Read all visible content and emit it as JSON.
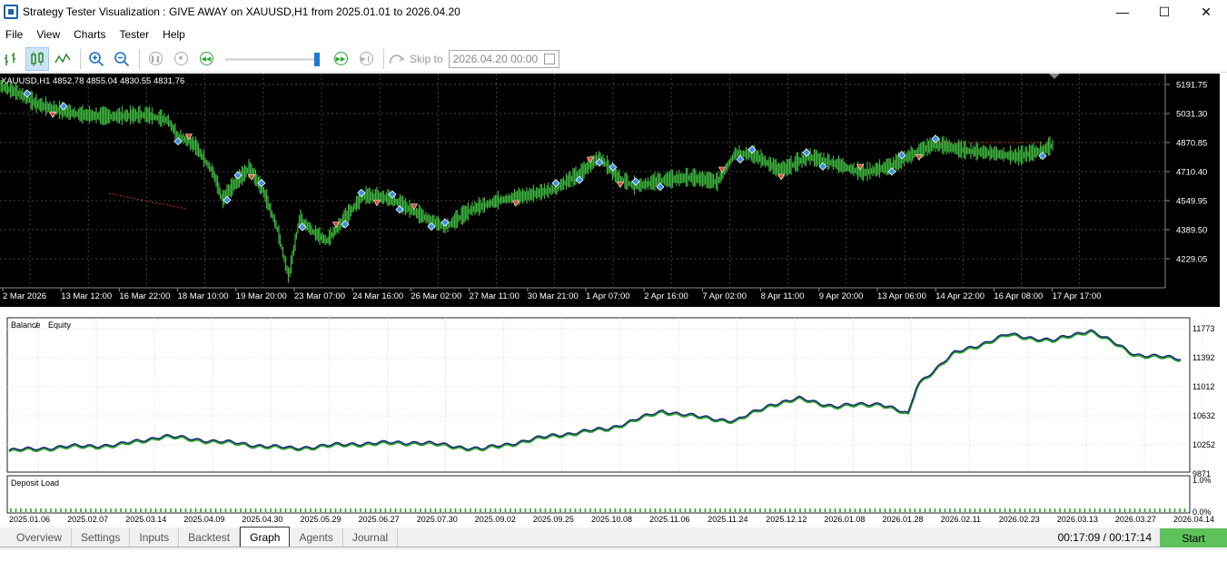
{
  "window": {
    "title": "Strategy Tester Visualization : GIVE AWAY on XAUUSD,H1 from 2025.01.01 to 2026.04.20",
    "minimize": "—",
    "maximize": "☐",
    "close": "✕"
  },
  "menu": [
    "File",
    "View",
    "Charts",
    "Tester",
    "Help"
  ],
  "toolbar": {
    "skip_label": "Skip to",
    "skip_value": "2026.04.20 00:00",
    "speed_level": 1.0
  },
  "price_chart": {
    "info": "XAUUSD,H1  4852.78 4855.04 4830.55 4831.76",
    "y_ticks": [
      "5191.75",
      "5031.30",
      "4870.85",
      "4710.40",
      "4549.95",
      "4389.50",
      "4229.05"
    ],
    "x_ticks": [
      "2 Mar 2026",
      "13 Mar 12:00",
      "16 Mar 22:00",
      "18 Mar 10:00",
      "19 Mar 20:00",
      "23 Mar 07:00",
      "24 Mar 16:00",
      "26 Mar 02:00",
      "27 Mar 11:00",
      "30 Mar 21:00",
      "1 Apr 07:00",
      "2 Apr 16:00",
      "7 Apr 02:00",
      "8 Apr 11:00",
      "9 Apr 20:00",
      "13 Apr 06:00",
      "14 Apr 22:00",
      "16 Apr 08:00",
      "17 Apr 17:00"
    ],
    "colors": {
      "background": "#000000",
      "candles": "#3cb43c",
      "grid": "#5a5a5a",
      "buy_marker": "#3b8fe0",
      "sell_marker": "#e0452b"
    }
  },
  "graph": {
    "legend_balance": "Balance",
    "legend_sep": " / ",
    "legend_equity": "Equity",
    "deposit_label": "Deposit Load",
    "y_ticks": [
      "11773",
      "11392",
      "11012",
      "10632",
      "10252",
      "9871"
    ],
    "load_ticks": [
      "1.0%",
      "0.0%"
    ],
    "x_ticks": [
      "2025.01.06",
      "2025.02.07",
      "2025.03.14",
      "2025.04.09",
      "2025.04.30",
      "2025.05.29",
      "2025.06.27",
      "2025.07.30",
      "2025.09.02",
      "2025.09.25",
      "2025.10.08",
      "2025.11.06",
      "2025.11.24",
      "2025.12.12",
      "2026.01.08",
      "2026.01.28",
      "2026.02.11",
      "2026.02.23",
      "2026.03.13",
      "2026.03.27",
      "2026.04.14"
    ],
    "colors": {
      "balance": "#1a237e",
      "equity": "#2ea02e",
      "load": "#2ea02e"
    }
  },
  "tabs": [
    "Overview",
    "Settings",
    "Inputs",
    "Backtest",
    "Graph",
    "Agents",
    "Journal"
  ],
  "active_tab": "Graph",
  "timer": "00:17:09 / 00:17:14",
  "start_label": "Start"
}
